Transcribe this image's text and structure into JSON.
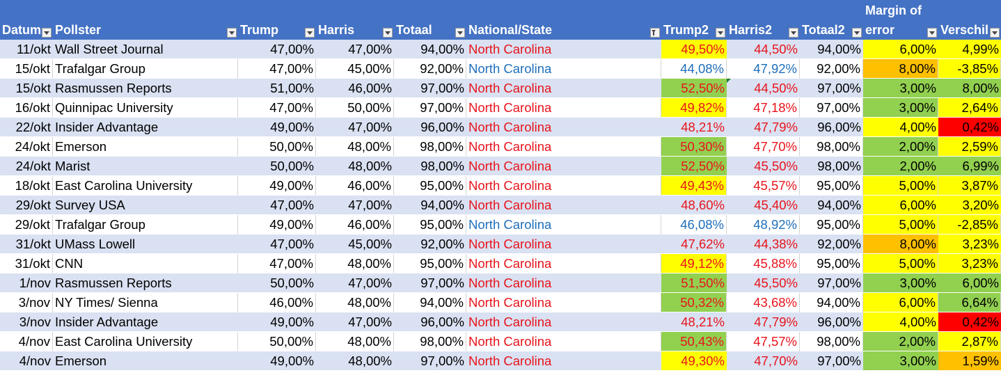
{
  "sheet": {
    "columns": [
      {
        "label": "Datum",
        "filter": true
      },
      {
        "label": "Pollster",
        "filter": true
      },
      {
        "label": "Trump",
        "filter": true
      },
      {
        "label": "Harris",
        "filter": true
      },
      {
        "label": "Totaal",
        "filter": true
      },
      {
        "label": "National/State",
        "filter": true,
        "filter_active": true
      },
      {
        "label": "Trump2",
        "filter": true
      },
      {
        "label": "Harris2",
        "filter": true
      },
      {
        "label": "Totaal2",
        "filter": true
      },
      {
        "label": "error",
        "label_top": "Margin of",
        "filter": true
      },
      {
        "label": "Verschil",
        "filter": true
      }
    ],
    "colors": {
      "header": "#4472c4",
      "band": "#d9e1f2",
      "yellow": "#ffff00",
      "green": "#92d050",
      "orange": "#ffc000",
      "red": "#ff0000",
      "text_red": "#e8141c",
      "text_blue": "#1f6fba"
    },
    "rows": [
      {
        "datum": "11/okt",
        "pollster": "Wall Street Journal",
        "trump": "47,00%",
        "harris": "47,00%",
        "totaal": "94,00%",
        "state": "North Carolina",
        "state_color": "red",
        "trump2": "49,50%",
        "trump2_bg": "yellow",
        "harris2": "44,50%",
        "totaal2": "94,00%",
        "moe": "6,00%",
        "moe_bg": "yellow",
        "verschil": "4,99%",
        "verschil_bg": "yellow"
      },
      {
        "datum": "15/okt",
        "pollster": "Trafalgar Group",
        "trump": "47,00%",
        "harris": "45,00%",
        "totaal": "92,00%",
        "state": "North Carolina",
        "state_color": "blue",
        "trump2": "44,08%",
        "trump2_bg": "",
        "harris2": "47,92%",
        "totaal2": "92,00%",
        "moe": "8,00%",
        "moe_bg": "orange",
        "verschil": "-3,85%",
        "verschil_bg": "yellow"
      },
      {
        "datum": "15/okt",
        "pollster": "Rasmussen Reports",
        "trump": "51,00%",
        "harris": "46,00%",
        "totaal": "97,00%",
        "state": "North Carolina",
        "state_color": "red",
        "trump2": "52,50%",
        "trump2_bg": "green",
        "harris2": "44,50%",
        "totaal2": "97,00%",
        "moe": "3,00%",
        "moe_bg": "green",
        "verschil": "8,00%",
        "verschil_bg": "green"
      },
      {
        "datum": "16/okt",
        "pollster": "Quinnipac University",
        "trump": "47,00%",
        "harris": "50,00%",
        "totaal": "97,00%",
        "state": "North Carolina",
        "state_color": "red",
        "trump2": "49,82%",
        "trump2_bg": "yellow",
        "harris2": "47,18%",
        "totaal2": "97,00%",
        "moe": "3,00%",
        "moe_bg": "green",
        "verschil": "2,64%",
        "verschil_bg": "yellow"
      },
      {
        "datum": "22/okt",
        "pollster": "Insider Advantage",
        "trump": "49,00%",
        "harris": "47,00%",
        "totaal": "96,00%",
        "state": "North Carolina",
        "state_color": "red",
        "trump2": "48,21%",
        "trump2_bg": "",
        "harris2": "47,79%",
        "totaal2": "96,00%",
        "moe": "4,00%",
        "moe_bg": "yellow",
        "verschil": "0,42%",
        "verschil_bg": "red"
      },
      {
        "datum": "24/okt",
        "pollster": "Emerson",
        "trump": "50,00%",
        "harris": "48,00%",
        "totaal": "98,00%",
        "state": "North Carolina",
        "state_color": "red",
        "trump2": "50,30%",
        "trump2_bg": "green",
        "harris2": "47,70%",
        "totaal2": "98,00%",
        "moe": "2,00%",
        "moe_bg": "green",
        "verschil": "2,59%",
        "verschil_bg": "yellow"
      },
      {
        "datum": "24/okt",
        "pollster": "Marist",
        "trump": "50,00%",
        "harris": "48,00%",
        "totaal": "98,00%",
        "state": "North Carolina",
        "state_color": "red",
        "trump2": "52,50%",
        "trump2_bg": "green",
        "harris2": "45,50%",
        "totaal2": "98,00%",
        "moe": "2,00%",
        "moe_bg": "green",
        "verschil": "6,99%",
        "verschil_bg": "green"
      },
      {
        "datum": "18/okt",
        "pollster": "East Carolina University",
        "trump": "49,00%",
        "harris": "46,00%",
        "totaal": "95,00%",
        "state": "North Carolina",
        "state_color": "red",
        "trump2": "49,43%",
        "trump2_bg": "yellow",
        "harris2": "45,57%",
        "totaal2": "95,00%",
        "moe": "5,00%",
        "moe_bg": "yellow",
        "verschil": "3,87%",
        "verschil_bg": "yellow"
      },
      {
        "datum": "29/okt",
        "pollster": "Survey USA",
        "trump": "47,00%",
        "harris": "47,00%",
        "totaal": "94,00%",
        "state": "North Carolina",
        "state_color": "red",
        "trump2": "48,60%",
        "trump2_bg": "",
        "harris2": "45,40%",
        "totaal2": "94,00%",
        "moe": "6,00%",
        "moe_bg": "yellow",
        "verschil": "3,20%",
        "verschil_bg": "yellow"
      },
      {
        "datum": "29/okt",
        "pollster": "Trafalgar Group",
        "trump": "49,00%",
        "harris": "46,00%",
        "totaal": "95,00%",
        "state": "North Carolina",
        "state_color": "blue",
        "trump2": "46,08%",
        "trump2_bg": "",
        "harris2": "48,92%",
        "totaal2": "95,00%",
        "moe": "5,00%",
        "moe_bg": "yellow",
        "verschil": "-2,85%",
        "verschil_bg": "yellow"
      },
      {
        "datum": "31/okt",
        "pollster": "UMass Lowell",
        "trump": "47,00%",
        "harris": "45,00%",
        "totaal": "92,00%",
        "state": "North Carolina",
        "state_color": "red",
        "trump2": "47,62%",
        "trump2_bg": "",
        "harris2": "44,38%",
        "totaal2": "92,00%",
        "moe": "8,00%",
        "moe_bg": "orange",
        "verschil": "3,23%",
        "verschil_bg": "yellow"
      },
      {
        "datum": "31/okt",
        "pollster": "CNN",
        "trump": "47,00%",
        "harris": "48,00%",
        "totaal": "95,00%",
        "state": "North Carolina",
        "state_color": "red",
        "trump2": "49,12%",
        "trump2_bg": "yellow",
        "harris2": "45,88%",
        "totaal2": "95,00%",
        "moe": "5,00%",
        "moe_bg": "yellow",
        "verschil": "3,23%",
        "verschil_bg": "yellow"
      },
      {
        "datum": "1/nov",
        "pollster": "Rasmussen Reports",
        "trump": "50,00%",
        "harris": "47,00%",
        "totaal": "97,00%",
        "state": "North Carolina",
        "state_color": "red",
        "trump2": "51,50%",
        "trump2_bg": "green",
        "harris2": "45,50%",
        "totaal2": "97,00%",
        "moe": "3,00%",
        "moe_bg": "green",
        "verschil": "6,00%",
        "verschil_bg": "green"
      },
      {
        "datum": "3/nov",
        "pollster": "NY Times/ Sienna",
        "trump": "46,00%",
        "harris": "48,00%",
        "totaal": "94,00%",
        "state": "North Carolina",
        "state_color": "red",
        "trump2": "50,32%",
        "trump2_bg": "green",
        "harris2": "43,68%",
        "totaal2": "94,00%",
        "moe": "6,00%",
        "moe_bg": "yellow",
        "verschil": "6,64%",
        "verschil_bg": "green"
      },
      {
        "datum": "3/nov",
        "pollster": "Insider Advantage",
        "trump": "49,00%",
        "harris": "47,00%",
        "totaal": "96,00%",
        "state": "North Carolina",
        "state_color": "red",
        "trump2": "48,21%",
        "trump2_bg": "",
        "harris2": "47,79%",
        "totaal2": "96,00%",
        "moe": "4,00%",
        "moe_bg": "yellow",
        "verschil": "0,42%",
        "verschil_bg": "red"
      },
      {
        "datum": "4/nov",
        "pollster": "East Carolina University",
        "trump": "50,00%",
        "harris": "48,00%",
        "totaal": "98,00%",
        "state": "North Carolina",
        "state_color": "red",
        "trump2": "50,43%",
        "trump2_bg": "green",
        "harris2": "47,57%",
        "totaal2": "98,00%",
        "moe": "2,00%",
        "moe_bg": "green",
        "verschil": "2,87%",
        "verschil_bg": "yellow"
      },
      {
        "datum": "4/nov",
        "pollster": "Emerson",
        "trump": "49,00%",
        "harris": "48,00%",
        "totaal": "97,00%",
        "state": "North Carolina",
        "state_color": "red",
        "trump2": "49,30%",
        "trump2_bg": "yellow",
        "harris2": "47,70%",
        "totaal2": "97,00%",
        "moe": "3,00%",
        "moe_bg": "green",
        "verschil": "1,59%",
        "verschil_bg": "orange"
      }
    ]
  }
}
